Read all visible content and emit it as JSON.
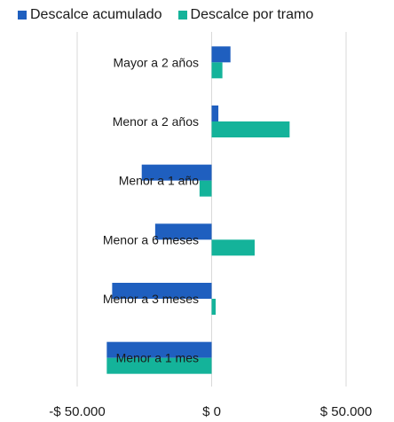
{
  "chart_data": {
    "type": "bar",
    "orientation": "horizontal",
    "categories": [
      "Mayor a 2 años",
      "Menor a 2 años",
      "Menor a 1 año",
      "Menor a 6 meses",
      "Menor a 3 meses",
      "Menor a 1 mes"
    ],
    "series": [
      {
        "name": "Descalce acumulado",
        "color": "#1f5fbf",
        "values": [
          7000,
          2500,
          -26000,
          -21000,
          -37000,
          -39000
        ]
      },
      {
        "name": "Descalce por tramo",
        "color": "#14b39a",
        "values": [
          4000,
          29000,
          -4500,
          16000,
          1500,
          -39000
        ]
      }
    ],
    "xlim": [
      -50000,
      50000
    ],
    "xticks": [
      {
        "value": -50000,
        "label": "-$ 50.000"
      },
      {
        "value": 0,
        "label": "$ 0"
      },
      {
        "value": 50000,
        "label": "$ 50.000"
      }
    ],
    "grid": true,
    "legend_position": "top"
  }
}
